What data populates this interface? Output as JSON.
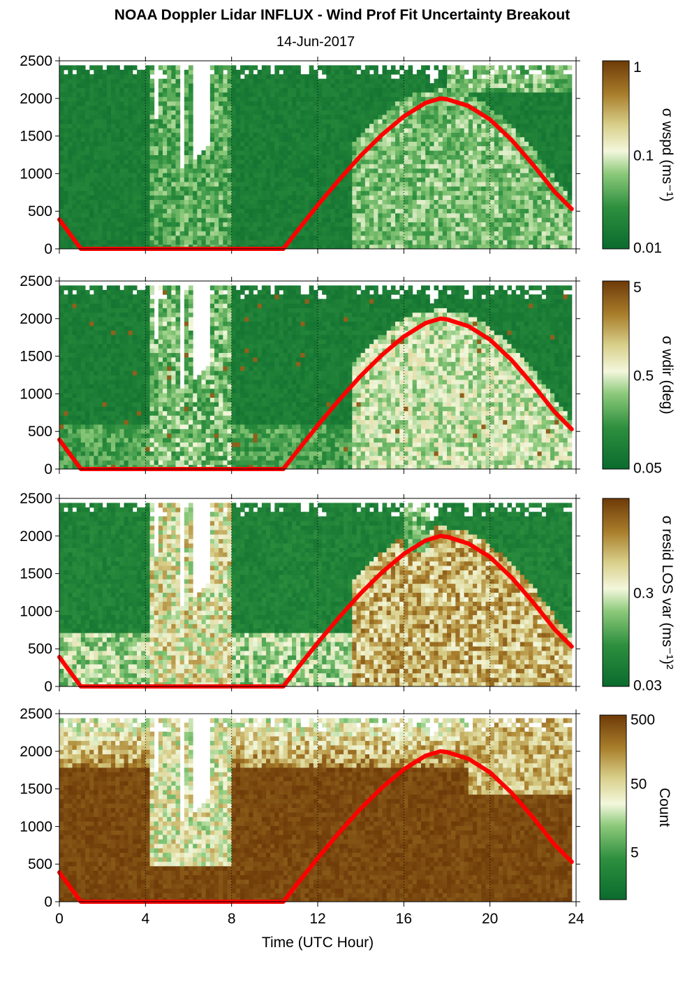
{
  "figure": {
    "title": "NOAA Doppler Lidar INFLUX - Wind Prof Fit Uncertainty Breakout",
    "subtitle": "14-Jun-2017",
    "xlabel": "Time (UTC Hour)"
  },
  "chart_data": [
    {
      "type": "heatmap",
      "colorbar_label": "σ wspd (ms⁻¹)",
      "colorbar_ticks": [
        "1",
        "0.1",
        "0.01"
      ],
      "ylim": [
        0,
        2500
      ],
      "yticks": [
        "0",
        "500",
        "1000",
        "1500",
        "2000",
        "2500"
      ],
      "xlim": [
        0,
        24
      ],
      "xticks": [
        "0",
        "4",
        "8",
        "12",
        "16",
        "20",
        "24"
      ],
      "boundary_layer_height": {
        "x": [
          0,
          1,
          10.4,
          11,
          12,
          13,
          14,
          15,
          16,
          17,
          17.7,
          18,
          19,
          20,
          21,
          22,
          23,
          23.8
        ],
        "y": [
          390,
          0,
          0,
          220,
          580,
          920,
          1240,
          1520,
          1760,
          1940,
          2000,
          1990,
          1900,
          1720,
          1450,
          1120,
          760,
          530
        ]
      }
    },
    {
      "type": "heatmap",
      "colorbar_label": "σ wdir (deg)",
      "colorbar_ticks": [
        "5",
        "0.5",
        "0.05"
      ],
      "ylim": [
        0,
        2500
      ],
      "yticks": [
        "0",
        "500",
        "1000",
        "1500",
        "2000",
        "2500"
      ],
      "xlim": [
        0,
        24
      ],
      "xticks": [
        "0",
        "4",
        "8",
        "12",
        "16",
        "20",
        "24"
      ],
      "boundary_layer_height": {
        "x": [
          0,
          1,
          10.4,
          11,
          12,
          13,
          14,
          15,
          16,
          17,
          17.7,
          18,
          19,
          20,
          21,
          22,
          23,
          23.8
        ],
        "y": [
          390,
          0,
          0,
          220,
          580,
          920,
          1240,
          1520,
          1760,
          1940,
          2000,
          1990,
          1900,
          1720,
          1450,
          1120,
          760,
          530
        ]
      }
    },
    {
      "type": "heatmap",
      "colorbar_label": "σ resid LOS var (ms⁻¹)²",
      "colorbar_ticks": [
        "0.3",
        "0.03"
      ],
      "ylim": [
        0,
        2500
      ],
      "yticks": [
        "0",
        "500",
        "1000",
        "1500",
        "2000",
        "2500"
      ],
      "xlim": [
        0,
        24
      ],
      "xticks": [
        "0",
        "4",
        "8",
        "12",
        "16",
        "20",
        "24"
      ],
      "boundary_layer_height": {
        "x": [
          0,
          1,
          10.4,
          11,
          12,
          13,
          14,
          15,
          16,
          17,
          17.7,
          18,
          19,
          20,
          21,
          22,
          23,
          23.8
        ],
        "y": [
          390,
          0,
          0,
          220,
          580,
          920,
          1240,
          1520,
          1760,
          1940,
          2000,
          1990,
          1900,
          1720,
          1450,
          1120,
          760,
          530
        ]
      }
    },
    {
      "type": "heatmap",
      "colorbar_label": "Count",
      "colorbar_ticks": [
        "500",
        "50",
        "5"
      ],
      "ylim": [
        0,
        2500
      ],
      "yticks": [
        "0",
        "500",
        "1000",
        "1500",
        "2000",
        "2500"
      ],
      "xlim": [
        0,
        24
      ],
      "xticks": [
        "0",
        "4",
        "8",
        "12",
        "16",
        "20",
        "24"
      ],
      "boundary_layer_height": {
        "x": [
          0,
          1,
          10.4,
          11,
          12,
          13,
          14,
          15,
          16,
          17,
          17.7,
          18,
          19,
          20,
          21,
          22,
          23,
          23.8
        ],
        "y": [
          390,
          0,
          0,
          220,
          580,
          920,
          1240,
          1520,
          1760,
          1940,
          2000,
          1990,
          1900,
          1720,
          1450,
          1120,
          760,
          530
        ]
      }
    }
  ],
  "colors": {
    "low": "#0b6b2e",
    "mid": "#f3f7dc",
    "high": "#6e3a08",
    "bl_line": "#ff0000"
  }
}
